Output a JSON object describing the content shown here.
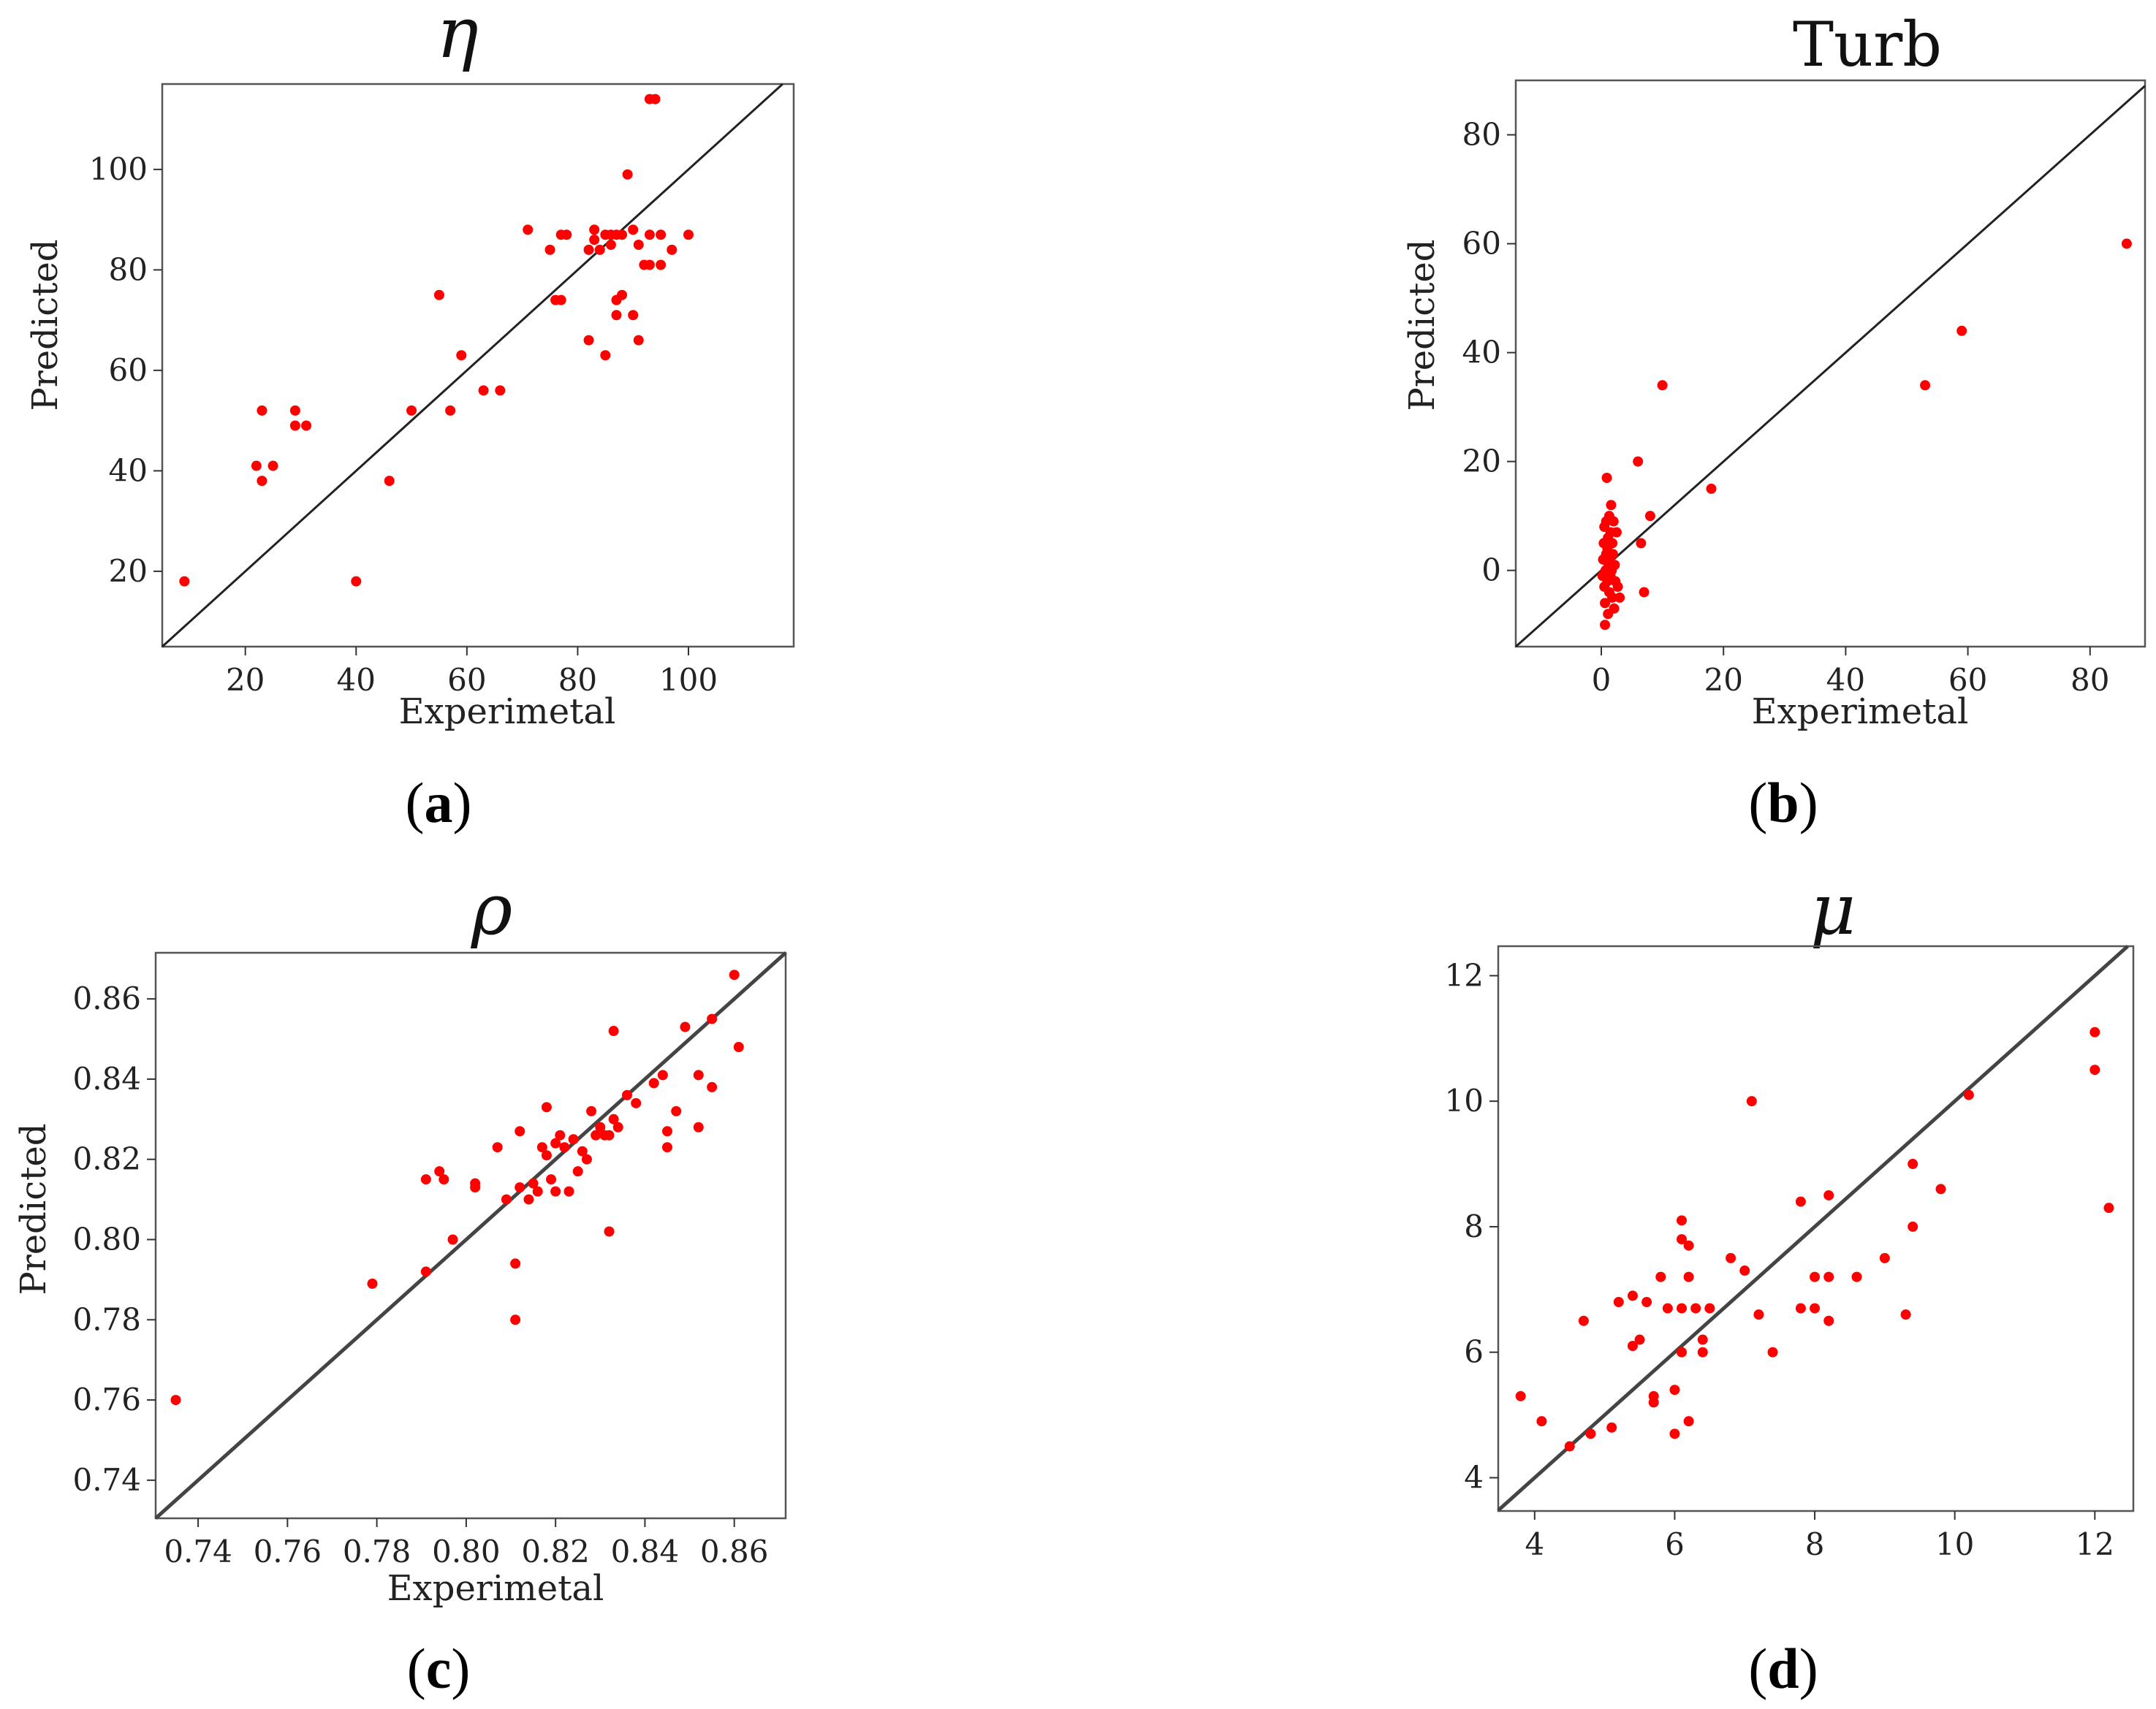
{
  "chart_data": [
    {
      "id": "a",
      "type": "scatter",
      "title": "η",
      "xlabel": "Experimetal",
      "ylabel": "Predicted",
      "panel_label": "a",
      "xlim": [
        5,
        119
      ],
      "ylim": [
        5,
        117
      ],
      "xticks": [
        20,
        40,
        60,
        80,
        100
      ],
      "yticks": [
        20,
        40,
        60,
        80,
        100
      ],
      "reference_line": "y = x",
      "points": [
        [
          9,
          18
        ],
        [
          22,
          41
        ],
        [
          23,
          38
        ],
        [
          23,
          52
        ],
        [
          25,
          41
        ],
        [
          29,
          52
        ],
        [
          29,
          49
        ],
        [
          31,
          49
        ],
        [
          40,
          18
        ],
        [
          46,
          38
        ],
        [
          50,
          52
        ],
        [
          55,
          75
        ],
        [
          57,
          52
        ],
        [
          59,
          63
        ],
        [
          63,
          56
        ],
        [
          66,
          56
        ],
        [
          71,
          88
        ],
        [
          75,
          84
        ],
        [
          76,
          74
        ],
        [
          77,
          74
        ],
        [
          77,
          87
        ],
        [
          78,
          87
        ],
        [
          82,
          66
        ],
        [
          82,
          84
        ],
        [
          83,
          88
        ],
        [
          83,
          86
        ],
        [
          84,
          84
        ],
        [
          85,
          87
        ],
        [
          85,
          63
        ],
        [
          86,
          87
        ],
        [
          86,
          85
        ],
        [
          87,
          87
        ],
        [
          87,
          74
        ],
        [
          88,
          75
        ],
        [
          87,
          71
        ],
        [
          88,
          87
        ],
        [
          89,
          99
        ],
        [
          90,
          71
        ],
        [
          90,
          88
        ],
        [
          91,
          85
        ],
        [
          91,
          66
        ],
        [
          92,
          81
        ],
        [
          93,
          81
        ],
        [
          93,
          87
        ],
        [
          93,
          114
        ],
        [
          94,
          114
        ],
        [
          95,
          81
        ],
        [
          95,
          87
        ],
        [
          97,
          84
        ],
        [
          100,
          87
        ]
      ]
    },
    {
      "id": "b",
      "type": "scatter",
      "title": "Turb",
      "xlabel": "Experimetal",
      "ylabel": "Predicted",
      "panel_label": "b",
      "xlim": [
        -14,
        89
      ],
      "ylim": [
        -14,
        90
      ],
      "xticks": [
        0,
        20,
        40,
        60,
        80
      ],
      "yticks": [
        0,
        20,
        40,
        60,
        80
      ],
      "reference_line": "y = x",
      "points": [
        [
          0.2,
          -1
        ],
        [
          0.3,
          2
        ],
        [
          0.4,
          5
        ],
        [
          0.5,
          8
        ],
        [
          0.5,
          -3
        ],
        [
          0.6,
          -6
        ],
        [
          0.6,
          -10
        ],
        [
          0.7,
          0
        ],
        [
          0.8,
          3
        ],
        [
          0.8,
          9
        ],
        [
          0.9,
          17
        ],
        [
          1,
          -2
        ],
        [
          1,
          4
        ],
        [
          1.1,
          6
        ],
        [
          1.1,
          -8
        ],
        [
          1.2,
          1
        ],
        [
          1.3,
          10
        ],
        [
          1.3,
          -4
        ],
        [
          1.4,
          2
        ],
        [
          1.5,
          7
        ],
        [
          1.5,
          -1
        ],
        [
          1.6,
          12
        ],
        [
          1.7,
          0
        ],
        [
          1.8,
          5
        ],
        [
          1.8,
          -5
        ],
        [
          1.9,
          3
        ],
        [
          2,
          9
        ],
        [
          2.1,
          -7
        ],
        [
          2.2,
          1
        ],
        [
          2.3,
          -2
        ],
        [
          2.5,
          7
        ],
        [
          2.7,
          -3
        ],
        [
          3,
          -5
        ],
        [
          6,
          20
        ],
        [
          6.5,
          5
        ],
        [
          7,
          -4
        ],
        [
          8,
          10
        ],
        [
          10,
          34
        ],
        [
          18,
          15
        ],
        [
          53,
          34
        ],
        [
          59,
          44
        ],
        [
          86,
          60
        ]
      ]
    },
    {
      "id": "c",
      "type": "scatter",
      "title": "ρ",
      "xlabel": "Experimetal",
      "ylabel": "Predicted",
      "panel_label": "c",
      "xlim": [
        0.7305,
        0.8715
      ],
      "ylim": [
        0.7305,
        0.8715
      ],
      "xticks": [
        "0.74",
        "0.76",
        "0.78",
        "0.80",
        "0.82",
        "0.84",
        "0.86"
      ],
      "yticks": [
        "0.74",
        "0.76",
        "0.78",
        "0.80",
        "0.82",
        "0.84",
        "0.86"
      ],
      "reference_line": "y = x",
      "points": [
        [
          0.735,
          0.76
        ],
        [
          0.779,
          0.789
        ],
        [
          0.791,
          0.792
        ],
        [
          0.791,
          0.815
        ],
        [
          0.794,
          0.817
        ],
        [
          0.795,
          0.815
        ],
        [
          0.797,
          0.8
        ],
        [
          0.802,
          0.814
        ],
        [
          0.802,
          0.813
        ],
        [
          0.807,
          0.823
        ],
        [
          0.809,
          0.81
        ],
        [
          0.811,
          0.794
        ],
        [
          0.811,
          0.78
        ],
        [
          0.812,
          0.813
        ],
        [
          0.812,
          0.827
        ],
        [
          0.814,
          0.81
        ],
        [
          0.815,
          0.814
        ],
        [
          0.816,
          0.812
        ],
        [
          0.817,
          0.823
        ],
        [
          0.818,
          0.833
        ],
        [
          0.818,
          0.821
        ],
        [
          0.819,
          0.815
        ],
        [
          0.82,
          0.824
        ],
        [
          0.82,
          0.812
        ],
        [
          0.821,
          0.826
        ],
        [
          0.822,
          0.823
        ],
        [
          0.823,
          0.812
        ],
        [
          0.824,
          0.825
        ],
        [
          0.825,
          0.817
        ],
        [
          0.826,
          0.822
        ],
        [
          0.827,
          0.82
        ],
        [
          0.828,
          0.832
        ],
        [
          0.829,
          0.826
        ],
        [
          0.83,
          0.828
        ],
        [
          0.831,
          0.826
        ],
        [
          0.832,
          0.802
        ],
        [
          0.832,
          0.826
        ],
        [
          0.833,
          0.83
        ],
        [
          0.833,
          0.852
        ],
        [
          0.834,
          0.828
        ],
        [
          0.836,
          0.836
        ],
        [
          0.838,
          0.834
        ],
        [
          0.842,
          0.839
        ],
        [
          0.844,
          0.841
        ],
        [
          0.845,
          0.823
        ],
        [
          0.845,
          0.827
        ],
        [
          0.847,
          0.832
        ],
        [
          0.849,
          0.853
        ],
        [
          0.852,
          0.828
        ],
        [
          0.852,
          0.841
        ],
        [
          0.855,
          0.855
        ],
        [
          0.855,
          0.838
        ],
        [
          0.86,
          0.866
        ],
        [
          0.861,
          0.848
        ]
      ]
    },
    {
      "id": "d",
      "type": "scatter",
      "title": "μ",
      "xlabel": "",
      "ylabel": "",
      "panel_label": "d",
      "xlim": [
        3.48,
        12.55
      ],
      "ylim": [
        3.47,
        12.47
      ],
      "xticks": [
        4,
        6,
        8,
        10,
        12
      ],
      "yticks": [
        4,
        6,
        8,
        10,
        12
      ],
      "reference_line": "y = x",
      "points": [
        [
          3.8,
          5.3
        ],
        [
          4.1,
          4.9
        ],
        [
          4.5,
          4.5
        ],
        [
          4.7,
          6.5
        ],
        [
          4.8,
          4.7
        ],
        [
          5.1,
          4.8
        ],
        [
          5.2,
          6.8
        ],
        [
          5.4,
          6.9
        ],
        [
          5.4,
          6.1
        ],
        [
          5.5,
          6.2
        ],
        [
          5.6,
          6.8
        ],
        [
          5.7,
          5.3
        ],
        [
          5.7,
          5.2
        ],
        [
          5.8,
          7.2
        ],
        [
          5.9,
          6.7
        ],
        [
          6,
          5.4
        ],
        [
          6,
          4.7
        ],
        [
          6.1,
          8.1
        ],
        [
          6.1,
          7.8
        ],
        [
          6.1,
          6.7
        ],
        [
          6.1,
          6
        ],
        [
          6.2,
          7.7
        ],
        [
          6.2,
          7.2
        ],
        [
          6.2,
          4.9
        ],
        [
          6.3,
          6.7
        ],
        [
          6.4,
          6
        ],
        [
          6.4,
          6.2
        ],
        [
          6.5,
          6.7
        ],
        [
          6.8,
          7.5
        ],
        [
          7,
          7.3
        ],
        [
          7.1,
          10
        ],
        [
          7.2,
          6.6
        ],
        [
          7.4,
          6
        ],
        [
          7.8,
          8.4
        ],
        [
          7.8,
          6.7
        ],
        [
          8,
          7.2
        ],
        [
          8,
          6.7
        ],
        [
          8.2,
          8.5
        ],
        [
          8.2,
          6.5
        ],
        [
          8.2,
          7.2
        ],
        [
          8.6,
          7.2
        ],
        [
          9,
          7.5
        ],
        [
          9.3,
          6.6
        ],
        [
          9.4,
          9
        ],
        [
          9.4,
          8
        ],
        [
          9.8,
          8.6
        ],
        [
          10.2,
          10.1
        ],
        [
          12,
          11.1
        ],
        [
          12,
          10.5
        ],
        [
          12.2,
          8.3
        ]
      ]
    }
  ]
}
